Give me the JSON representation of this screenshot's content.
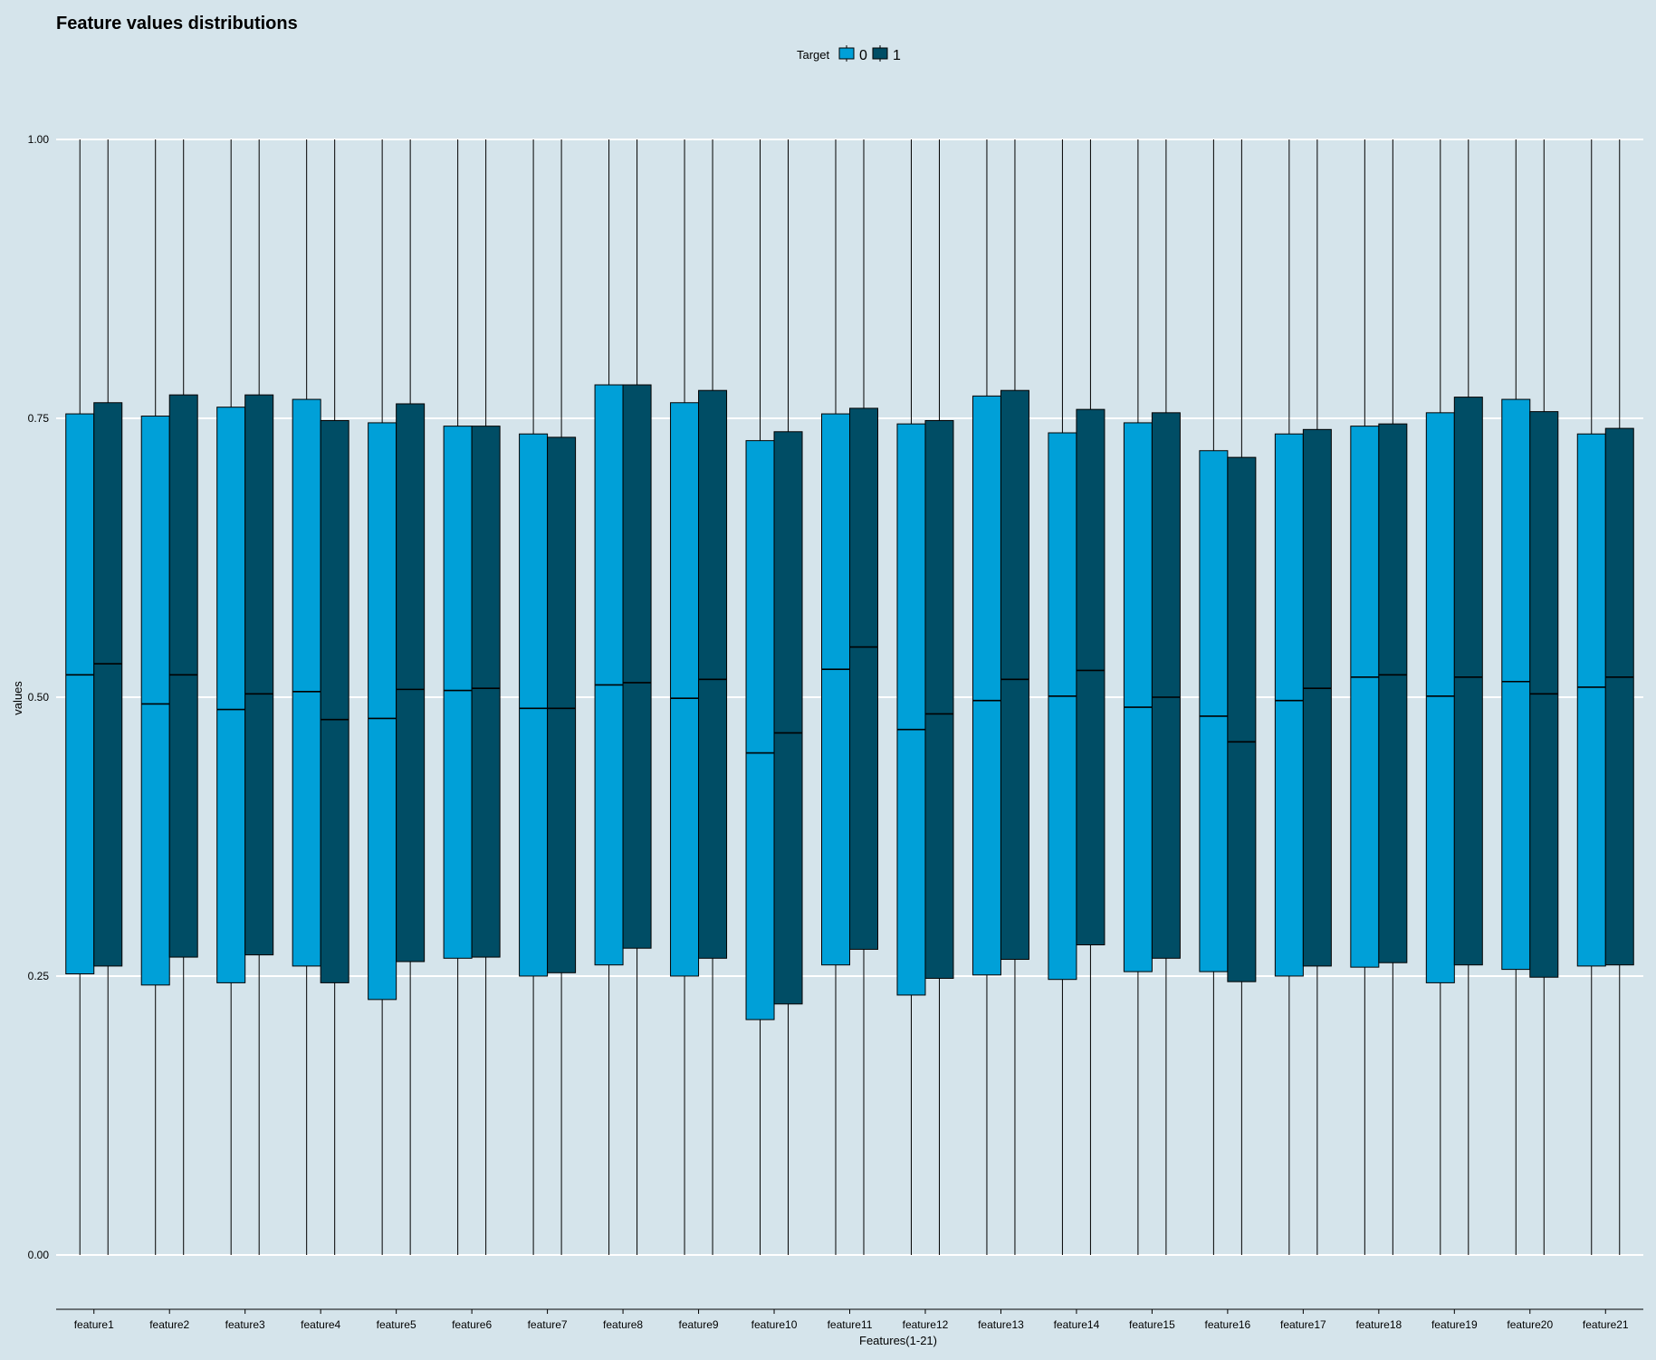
{
  "chart_data": {
    "type": "boxplot",
    "title": "Feature values distributions",
    "xlabel": "Features(1-21)",
    "ylabel": "values",
    "ylim": [
      0,
      1
    ],
    "yticks": [
      {
        "value": 0,
        "label": "0.00"
      },
      {
        "value": 0.25,
        "label": "0.25"
      },
      {
        "value": 0.5,
        "label": "0.50"
      },
      {
        "value": 0.75,
        "label": "0.75"
      },
      {
        "value": 1,
        "label": "1.00"
      }
    ],
    "grid": true,
    "legend": {
      "title": "Target",
      "position": "top-center"
    },
    "categories": [
      "feature1",
      "feature2",
      "feature3",
      "feature4",
      "feature5",
      "feature6",
      "feature7",
      "feature8",
      "feature9",
      "feature10",
      "feature11",
      "feature12",
      "feature13",
      "feature14",
      "feature15",
      "feature16",
      "feature17",
      "feature18",
      "feature19",
      "feature20",
      "feature21"
    ],
    "series": [
      {
        "name": "0",
        "color": "#00a0d8",
        "min": [
          0,
          0,
          0,
          0,
          0,
          0,
          0,
          0,
          0,
          0,
          0,
          0,
          0,
          0,
          0,
          0,
          0,
          0,
          0,
          0,
          0
        ],
        "q1": [
          0.252,
          0.242,
          0.244,
          0.259,
          0.229,
          0.266,
          0.25,
          0.26,
          0.25,
          0.211,
          0.26,
          0.233,
          0.251,
          0.247,
          0.254,
          0.254,
          0.25,
          0.258,
          0.244,
          0.256,
          0.259
        ],
        "median": [
          0.52,
          0.494,
          0.489,
          0.505,
          0.481,
          0.506,
          0.49,
          0.511,
          0.499,
          0.45,
          0.525,
          0.471,
          0.497,
          0.501,
          0.491,
          0.483,
          0.497,
          0.518,
          0.501,
          0.514,
          0.509
        ],
        "q3": [
          0.754,
          0.752,
          0.76,
          0.767,
          0.746,
          0.743,
          0.736,
          0.78,
          0.764,
          0.73,
          0.754,
          0.745,
          0.77,
          0.737,
          0.746,
          0.721,
          0.736,
          0.743,
          0.755,
          0.767,
          0.736
        ],
        "max": [
          1,
          1,
          1,
          1,
          1,
          1,
          1,
          1,
          1,
          1,
          1,
          1,
          1,
          1,
          1,
          1,
          1,
          1,
          1,
          1,
          1
        ]
      },
      {
        "name": "1",
        "color": "#004d65",
        "min": [
          0,
          0,
          0,
          0,
          0,
          0,
          0,
          0,
          0,
          0,
          0,
          0,
          0,
          0,
          0,
          0,
          0,
          0,
          0,
          0,
          0
        ],
        "q1": [
          0.259,
          0.267,
          0.269,
          0.244,
          0.263,
          0.267,
          0.253,
          0.275,
          0.266,
          0.225,
          0.274,
          0.248,
          0.265,
          0.278,
          0.266,
          0.245,
          0.259,
          0.262,
          0.26,
          0.249,
          0.26
        ],
        "median": [
          0.53,
          0.52,
          0.503,
          0.48,
          0.507,
          0.508,
          0.49,
          0.513,
          0.516,
          0.468,
          0.545,
          0.485,
          0.516,
          0.524,
          0.5,
          0.46,
          0.508,
          0.52,
          0.518,
          0.503,
          0.518
        ],
        "q3": [
          0.764,
          0.771,
          0.771,
          0.748,
          0.763,
          0.743,
          0.733,
          0.78,
          0.775,
          0.738,
          0.759,
          0.748,
          0.775,
          0.758,
          0.755,
          0.715,
          0.74,
          0.745,
          0.769,
          0.756,
          0.741
        ],
        "max": [
          1,
          1,
          1,
          1,
          1,
          1,
          1,
          1,
          1,
          1,
          1,
          1,
          1,
          1,
          1,
          1,
          1,
          1,
          1,
          1,
          1
        ]
      }
    ]
  }
}
